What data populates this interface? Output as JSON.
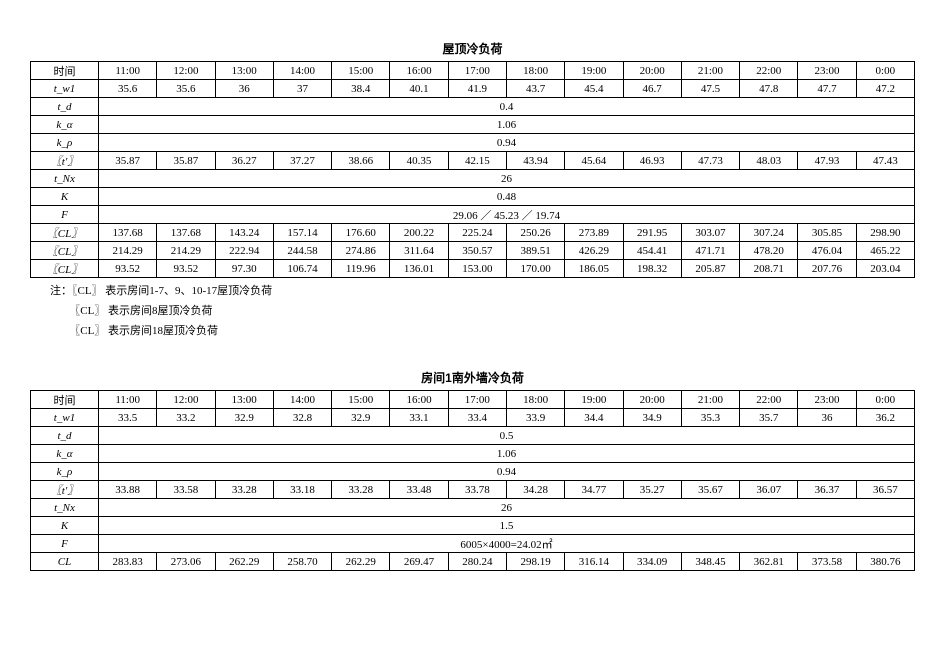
{
  "table1": {
    "title": "屋顶冷负荷",
    "timeLabel": "时间",
    "times": [
      "11:00",
      "12:00",
      "13:00",
      "14:00",
      "15:00",
      "16:00",
      "17:00",
      "18:00",
      "19:00",
      "20:00",
      "21:00",
      "22:00",
      "23:00",
      "0:00"
    ],
    "rows": [
      {
        "label": "t_w1",
        "values": [
          "35.6",
          "35.6",
          "36",
          "37",
          "38.4",
          "40.1",
          "41.9",
          "43.7",
          "45.4",
          "46.7",
          "47.5",
          "47.8",
          "47.7",
          "47.2"
        ]
      },
      {
        "label": "t_d",
        "span": "0.4"
      },
      {
        "label": "k_α",
        "span": "1.06"
      },
      {
        "label": "k_ρ",
        "span": "0.94"
      },
      {
        "label": "〖t'〗",
        "values": [
          "35.87",
          "35.87",
          "36.27",
          "37.27",
          "38.66",
          "40.35",
          "42.15",
          "43.94",
          "45.64",
          "46.93",
          "47.73",
          "48.03",
          "47.93",
          "47.43"
        ]
      },
      {
        "label": "t_Nx",
        "span": "26"
      },
      {
        "label": "K",
        "span": "0.48"
      },
      {
        "label": "F",
        "span": "29.06 ／ 45.23 ／ 19.74"
      },
      {
        "label": "〖CL〗",
        "values": [
          "137.68",
          "137.68",
          "143.24",
          "157.14",
          "176.60",
          "200.22",
          "225.24",
          "250.26",
          "273.89",
          "291.95",
          "303.07",
          "307.24",
          "305.85",
          "298.90"
        ]
      },
      {
        "label": "〖CL〗",
        "values": [
          "214.29",
          "214.29",
          "222.94",
          "244.58",
          "274.86",
          "311.64",
          "350.57",
          "389.51",
          "426.29",
          "454.41",
          "471.71",
          "478.20",
          "476.04",
          "465.22"
        ]
      },
      {
        "label": "〖CL〗",
        "values": [
          "93.52",
          "93.52",
          "97.30",
          "106.74",
          "119.96",
          "136.01",
          "153.00",
          "170.00",
          "186.05",
          "198.32",
          "205.87",
          "208.71",
          "207.76",
          "203.04"
        ]
      }
    ],
    "notes": [
      "注：〖CL〗 表示房间1-7、9、10-17屋顶冷负荷",
      "       〖CL〗 表示房间8屋顶冷负荷",
      "       〖CL〗 表示房间18屋顶冷负荷"
    ]
  },
  "table2": {
    "title": "房间1南外墙冷负荷",
    "timeLabel": "时间",
    "times": [
      "11:00",
      "12:00",
      "13:00",
      "14:00",
      "15:00",
      "16:00",
      "17:00",
      "18:00",
      "19:00",
      "20:00",
      "21:00",
      "22:00",
      "23:00",
      "0:00"
    ],
    "rows": [
      {
        "label": "t_w1",
        "values": [
          "33.5",
          "33.2",
          "32.9",
          "32.8",
          "32.9",
          "33.1",
          "33.4",
          "33.9",
          "34.4",
          "34.9",
          "35.3",
          "35.7",
          "36",
          "36.2"
        ]
      },
      {
        "label": "t_d",
        "span": "0.5"
      },
      {
        "label": "k_α",
        "span": "1.06"
      },
      {
        "label": "k_ρ",
        "span": "0.94"
      },
      {
        "label": "〖t'〗",
        "values": [
          "33.88",
          "33.58",
          "33.28",
          "33.18",
          "33.28",
          "33.48",
          "33.78",
          "34.28",
          "34.77",
          "35.27",
          "35.67",
          "36.07",
          "36.37",
          "36.57"
        ]
      },
      {
        "label": "t_Nx",
        "span": "26"
      },
      {
        "label": "K",
        "span": "1.5"
      },
      {
        "label": "F",
        "span": "6005×4000=24.02㎡"
      },
      {
        "label": "CL",
        "values": [
          "283.83",
          "273.06",
          "262.29",
          "258.70",
          "262.29",
          "269.47",
          "280.24",
          "298.19",
          "316.14",
          "334.09",
          "348.45",
          "362.81",
          "373.58",
          "380.76"
        ]
      }
    ]
  }
}
